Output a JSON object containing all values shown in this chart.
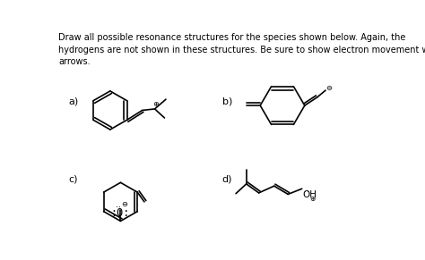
{
  "title_text": "Draw all possible resonance structures for the species shown below. Again, the\nhydrogens are not shown in these structures. Be sure to show electron movement with\narrows.",
  "bg_color": "#ffffff",
  "label_a": "a)",
  "label_b": "b)",
  "label_c": "c)",
  "label_d": "d)"
}
